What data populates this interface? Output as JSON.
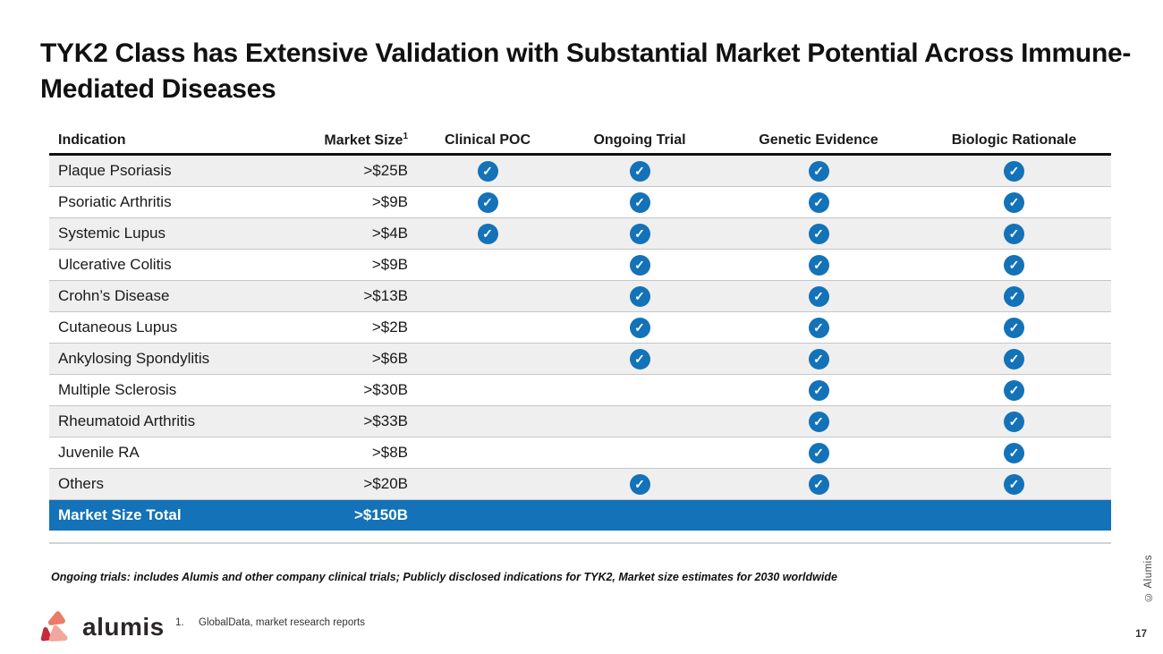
{
  "slide": {
    "title": "TYK2 Class has Extensive Validation with Substantial Market Potential Across Immune-Mediated Diseases",
    "note": "Ongoing trials: includes Alumis and other company clinical trials; Publicly disclosed indications for TYK2, Market size estimates for 2030 worldwide",
    "footnote_marker": "1.",
    "footnote": "GlobalData, market research reports",
    "logo_text": "alumis",
    "copyright": "© Alumis",
    "page_number": "17"
  },
  "table": {
    "columns": [
      "Indication",
      "Market Size",
      "Clinical POC",
      "Ongoing Trial",
      "Genetic Evidence",
      "Biologic Rationale"
    ],
    "market_size_superscript": "1",
    "rows": [
      {
        "indication": "Plaque Psoriasis",
        "market_size": ">$25B",
        "clinical_poc": true,
        "ongoing_trial": true,
        "genetic_evidence": true,
        "biologic_rationale": true
      },
      {
        "indication": "Psoriatic Arthritis",
        "market_size": ">$9B",
        "clinical_poc": true,
        "ongoing_trial": true,
        "genetic_evidence": true,
        "biologic_rationale": true
      },
      {
        "indication": "Systemic Lupus",
        "market_size": ">$4B",
        "clinical_poc": true,
        "ongoing_trial": true,
        "genetic_evidence": true,
        "biologic_rationale": true
      },
      {
        "indication": "Ulcerative Colitis",
        "market_size": ">$9B",
        "clinical_poc": false,
        "ongoing_trial": true,
        "genetic_evidence": true,
        "biologic_rationale": true
      },
      {
        "indication": "Crohn’s Disease",
        "market_size": ">$13B",
        "clinical_poc": false,
        "ongoing_trial": true,
        "genetic_evidence": true,
        "biologic_rationale": true
      },
      {
        "indication": "Cutaneous Lupus",
        "market_size": ">$2B",
        "clinical_poc": false,
        "ongoing_trial": true,
        "genetic_evidence": true,
        "biologic_rationale": true
      },
      {
        "indication": "Ankylosing Spondylitis",
        "market_size": ">$6B",
        "clinical_poc": false,
        "ongoing_trial": true,
        "genetic_evidence": true,
        "biologic_rationale": true
      },
      {
        "indication": "Multiple Sclerosis",
        "market_size": ">$30B",
        "clinical_poc": false,
        "ongoing_trial": false,
        "genetic_evidence": true,
        "biologic_rationale": true
      },
      {
        "indication": "Rheumatoid Arthritis",
        "market_size": ">$33B",
        "clinical_poc": false,
        "ongoing_trial": false,
        "genetic_evidence": true,
        "biologic_rationale": true
      },
      {
        "indication": "Juvenile RA",
        "market_size": ">$8B",
        "clinical_poc": false,
        "ongoing_trial": false,
        "genetic_evidence": true,
        "biologic_rationale": true
      },
      {
        "indication": "Others",
        "market_size": ">$20B",
        "clinical_poc": false,
        "ongoing_trial": true,
        "genetic_evidence": true,
        "biologic_rationale": true
      }
    ],
    "total": {
      "label": "Market Size Total",
      "value": ">$150B"
    }
  },
  "icons": {
    "check_glyph": "✓"
  },
  "colors": {
    "check_blue": "#1372b8",
    "total_row_blue": "#1372b8",
    "stripe_gray": "#efefef",
    "logo_coral": "#e97c68",
    "logo_dark_red": "#c72a3c",
    "logo_light_pink": "#f2a79e"
  }
}
